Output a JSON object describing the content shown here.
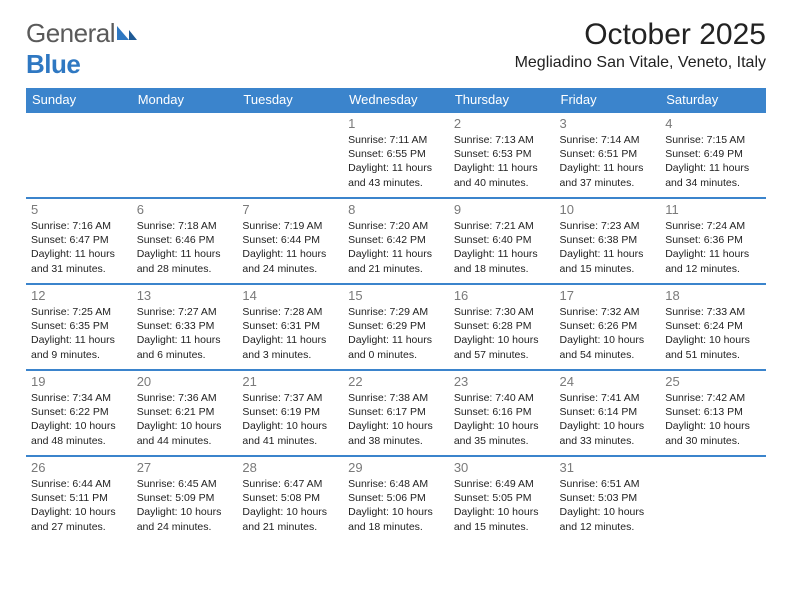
{
  "logo": {
    "text_a": "General",
    "text_b": "Blue"
  },
  "title": "October 2025",
  "subtitle": "Megliadino San Vitale, Veneto, Italy",
  "colors": {
    "header_bg": "#3b84cc",
    "header_text": "#ffffff",
    "daynum": "#7a7a7a",
    "logo_gray": "#5a5a5a",
    "logo_blue": "#2f78c2",
    "row_border": "#3b84cc"
  },
  "weekdays": [
    "Sunday",
    "Monday",
    "Tuesday",
    "Wednesday",
    "Thursday",
    "Friday",
    "Saturday"
  ],
  "weeks": [
    [
      null,
      null,
      null,
      {
        "n": "1",
        "sr": "7:11 AM",
        "ss": "6:55 PM",
        "dl": "11 hours and 43 minutes."
      },
      {
        "n": "2",
        "sr": "7:13 AM",
        "ss": "6:53 PM",
        "dl": "11 hours and 40 minutes."
      },
      {
        "n": "3",
        "sr": "7:14 AM",
        "ss": "6:51 PM",
        "dl": "11 hours and 37 minutes."
      },
      {
        "n": "4",
        "sr": "7:15 AM",
        "ss": "6:49 PM",
        "dl": "11 hours and 34 minutes."
      }
    ],
    [
      {
        "n": "5",
        "sr": "7:16 AM",
        "ss": "6:47 PM",
        "dl": "11 hours and 31 minutes."
      },
      {
        "n": "6",
        "sr": "7:18 AM",
        "ss": "6:46 PM",
        "dl": "11 hours and 28 minutes."
      },
      {
        "n": "7",
        "sr": "7:19 AM",
        "ss": "6:44 PM",
        "dl": "11 hours and 24 minutes."
      },
      {
        "n": "8",
        "sr": "7:20 AM",
        "ss": "6:42 PM",
        "dl": "11 hours and 21 minutes."
      },
      {
        "n": "9",
        "sr": "7:21 AM",
        "ss": "6:40 PM",
        "dl": "11 hours and 18 minutes."
      },
      {
        "n": "10",
        "sr": "7:23 AM",
        "ss": "6:38 PM",
        "dl": "11 hours and 15 minutes."
      },
      {
        "n": "11",
        "sr": "7:24 AM",
        "ss": "6:36 PM",
        "dl": "11 hours and 12 minutes."
      }
    ],
    [
      {
        "n": "12",
        "sr": "7:25 AM",
        "ss": "6:35 PM",
        "dl": "11 hours and 9 minutes."
      },
      {
        "n": "13",
        "sr": "7:27 AM",
        "ss": "6:33 PM",
        "dl": "11 hours and 6 minutes."
      },
      {
        "n": "14",
        "sr": "7:28 AM",
        "ss": "6:31 PM",
        "dl": "11 hours and 3 minutes."
      },
      {
        "n": "15",
        "sr": "7:29 AM",
        "ss": "6:29 PM",
        "dl": "11 hours and 0 minutes."
      },
      {
        "n": "16",
        "sr": "7:30 AM",
        "ss": "6:28 PM",
        "dl": "10 hours and 57 minutes."
      },
      {
        "n": "17",
        "sr": "7:32 AM",
        "ss": "6:26 PM",
        "dl": "10 hours and 54 minutes."
      },
      {
        "n": "18",
        "sr": "7:33 AM",
        "ss": "6:24 PM",
        "dl": "10 hours and 51 minutes."
      }
    ],
    [
      {
        "n": "19",
        "sr": "7:34 AM",
        "ss": "6:22 PM",
        "dl": "10 hours and 48 minutes."
      },
      {
        "n": "20",
        "sr": "7:36 AM",
        "ss": "6:21 PM",
        "dl": "10 hours and 44 minutes."
      },
      {
        "n": "21",
        "sr": "7:37 AM",
        "ss": "6:19 PM",
        "dl": "10 hours and 41 minutes."
      },
      {
        "n": "22",
        "sr": "7:38 AM",
        "ss": "6:17 PM",
        "dl": "10 hours and 38 minutes."
      },
      {
        "n": "23",
        "sr": "7:40 AM",
        "ss": "6:16 PM",
        "dl": "10 hours and 35 minutes."
      },
      {
        "n": "24",
        "sr": "7:41 AM",
        "ss": "6:14 PM",
        "dl": "10 hours and 33 minutes."
      },
      {
        "n": "25",
        "sr": "7:42 AM",
        "ss": "6:13 PM",
        "dl": "10 hours and 30 minutes."
      }
    ],
    [
      {
        "n": "26",
        "sr": "6:44 AM",
        "ss": "5:11 PM",
        "dl": "10 hours and 27 minutes."
      },
      {
        "n": "27",
        "sr": "6:45 AM",
        "ss": "5:09 PM",
        "dl": "10 hours and 24 minutes."
      },
      {
        "n": "28",
        "sr": "6:47 AM",
        "ss": "5:08 PM",
        "dl": "10 hours and 21 minutes."
      },
      {
        "n": "29",
        "sr": "6:48 AM",
        "ss": "5:06 PM",
        "dl": "10 hours and 18 minutes."
      },
      {
        "n": "30",
        "sr": "6:49 AM",
        "ss": "5:05 PM",
        "dl": "10 hours and 15 minutes."
      },
      {
        "n": "31",
        "sr": "6:51 AM",
        "ss": "5:03 PM",
        "dl": "10 hours and 12 minutes."
      },
      null
    ]
  ],
  "labels": {
    "sunrise": "Sunrise:",
    "sunset": "Sunset:",
    "daylight": "Daylight:"
  }
}
